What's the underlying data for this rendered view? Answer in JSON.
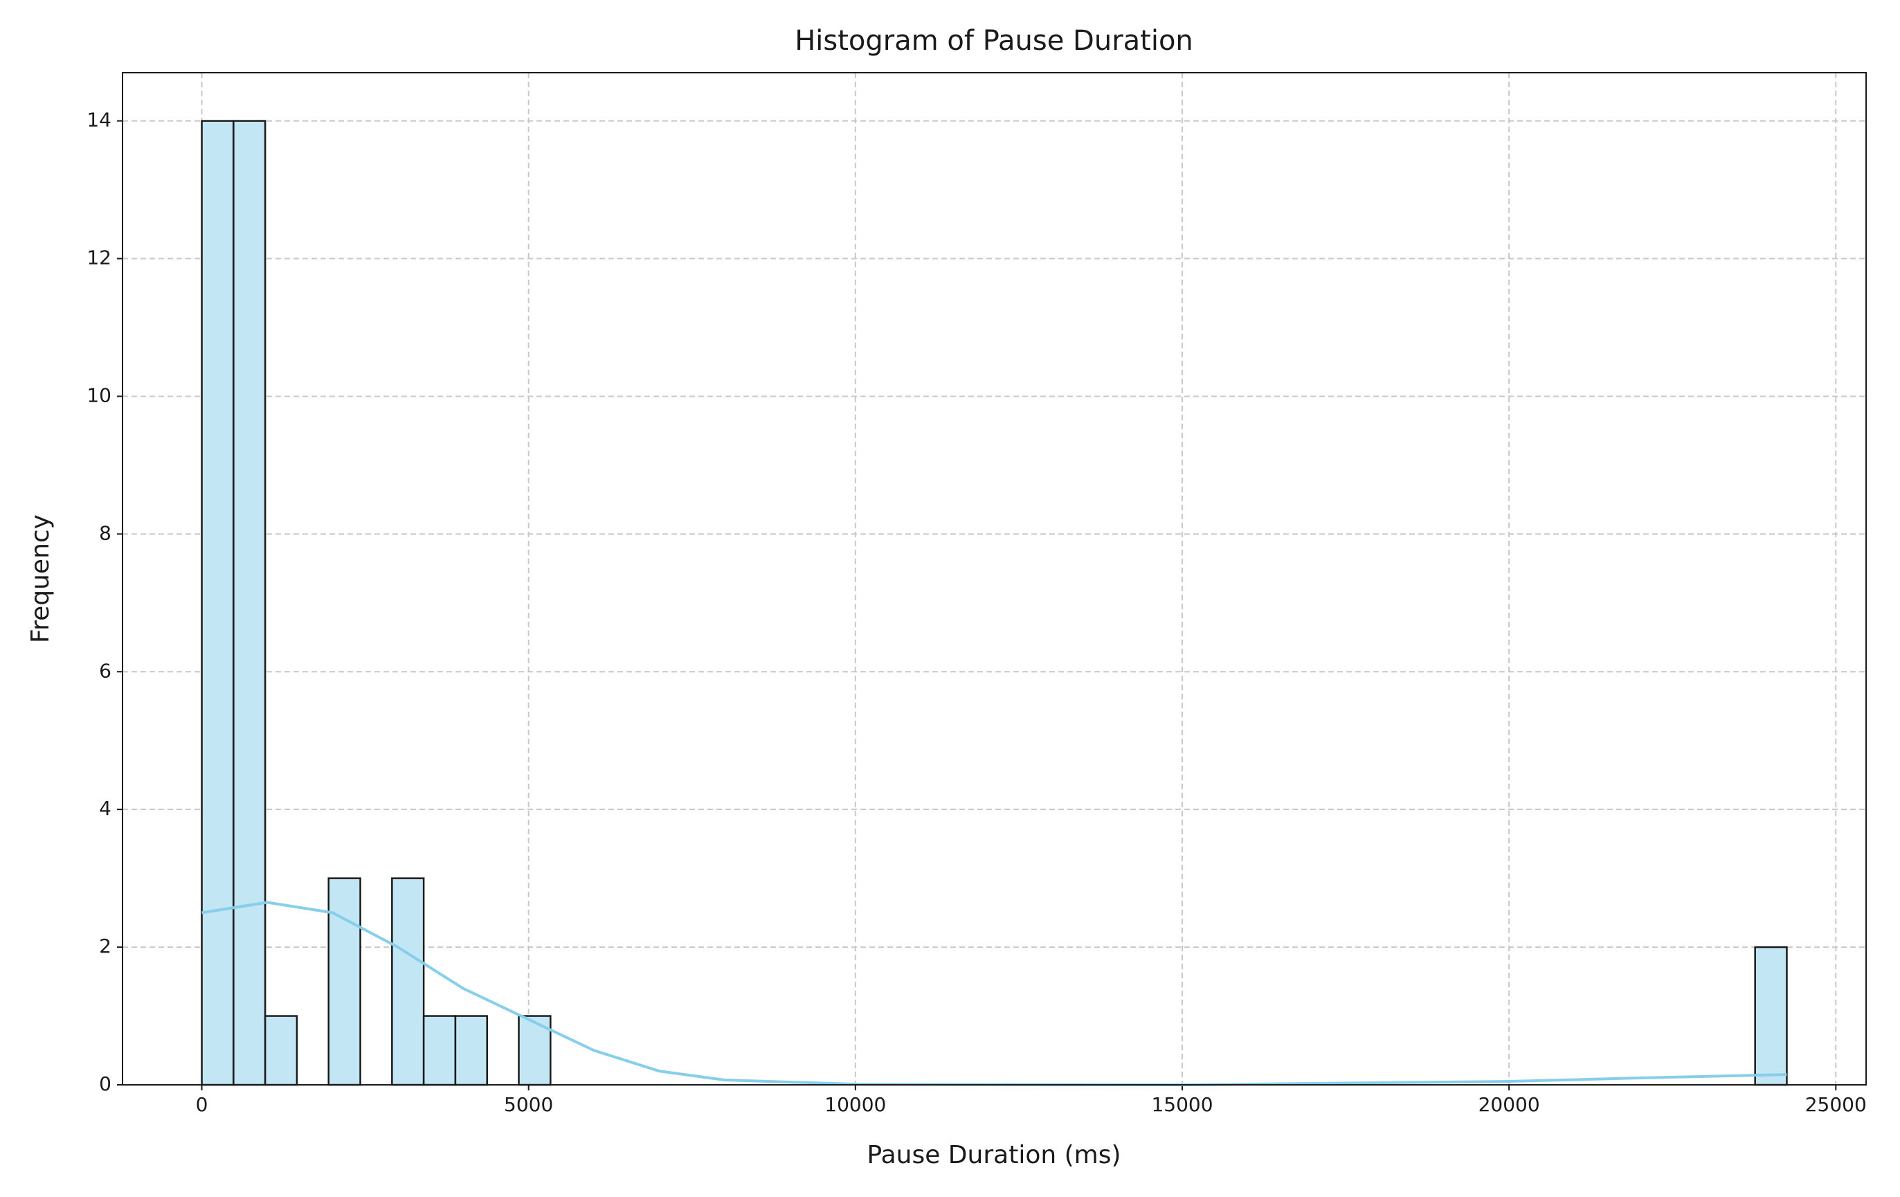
{
  "chart_data": {
    "type": "histogram",
    "title": "Histogram of Pause Duration",
    "xlabel": "Pause Duration (ms)",
    "ylabel": "Frequency",
    "bins": [
      0,
      485,
      970,
      1455,
      1940,
      2425,
      2910,
      3395,
      3880,
      4365,
      4850,
      5335,
      5820,
      6305,
      6790,
      7275,
      7760,
      8245,
      8730,
      9215,
      9700,
      10185,
      10670,
      11155,
      11640,
      12125,
      12610,
      13095,
      13580,
      14065,
      14550,
      15035,
      15520,
      16005,
      16490,
      16975,
      17460,
      17945,
      18430,
      18915,
      19400,
      19885,
      20370,
      20855,
      21340,
      21825,
      22310,
      22795,
      23280,
      23765,
      24250
    ],
    "values": [
      14,
      14,
      1,
      0,
      3,
      0,
      3,
      1,
      1,
      0,
      1,
      0,
      0,
      0,
      0,
      0,
      0,
      0,
      0,
      0,
      0,
      0,
      0,
      0,
      0,
      0,
      0,
      0,
      0,
      0,
      0,
      0,
      0,
      0,
      0,
      0,
      0,
      0,
      0,
      0,
      0,
      0,
      0,
      0,
      0,
      0,
      0,
      0,
      0,
      2
    ],
    "color": "#c3e6f5",
    "edgecolor": "#1a1a1a",
    "kde": {
      "color": "#87ceeb",
      "x": [
        0,
        1000,
        2000,
        3000,
        4000,
        5000,
        6000,
        7000,
        8000,
        10000,
        15000,
        20000,
        22000,
        24250
      ],
      "values": [
        2.5,
        2.65,
        2.5,
        2.0,
        1.4,
        0.95,
        0.5,
        0.2,
        0.07,
        0.01,
        0,
        0.05,
        0.1,
        0.15
      ]
    },
    "xlim": [
      -1213,
      25463
    ],
    "ylim": [
      0,
      14.7
    ],
    "xticks": [
      0,
      5000,
      10000,
      15000,
      20000,
      25000
    ],
    "yticks": [
      0,
      2,
      4,
      6,
      8,
      10,
      12,
      14
    ],
    "grid": true
  }
}
